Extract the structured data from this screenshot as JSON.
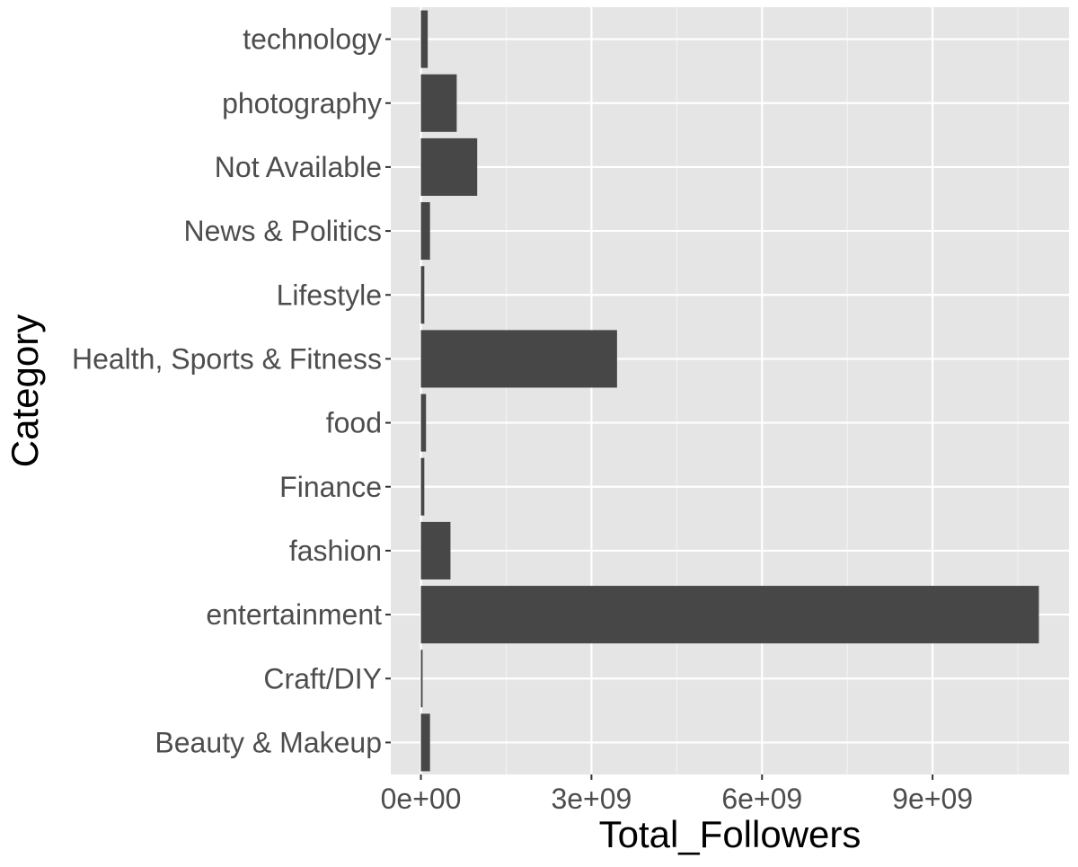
{
  "chart_data": {
    "type": "bar",
    "orientation": "horizontal",
    "title": "",
    "xlabel": "Total_Followers",
    "ylabel": "Category",
    "categories": [
      "Beauty & Makeup",
      "Craft/DIY",
      "entertainment",
      "fashion",
      "Finance",
      "food",
      "Health, Sports & Fitness",
      "Lifestyle",
      "News & Politics",
      "Not Available",
      "photography",
      "technology"
    ],
    "values": [
      160000000,
      30000000,
      10870000000,
      520000000,
      60000000,
      90000000,
      3450000000,
      60000000,
      160000000,
      990000000,
      630000000,
      120000000
    ],
    "xlim": [
      -530000000,
      11400000000
    ],
    "x_ticks": [
      0,
      3000000000,
      6000000000,
      9000000000
    ],
    "x_tick_labels": [
      "0e+00",
      "3e+09",
      "6e+09",
      "9e+09"
    ],
    "grid": true,
    "legend": "none",
    "colors": {
      "panel_background": "#e5e5e5",
      "grid_major": "#ffffff",
      "grid_minor": "#f2f2f2",
      "bar_fill": "#474747",
      "tick_text": "#4d4d4d",
      "axis_title": "#000000"
    }
  }
}
